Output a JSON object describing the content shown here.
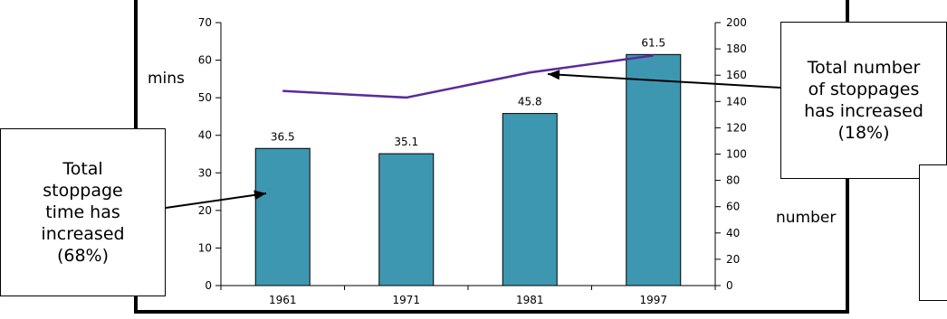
{
  "chart_data": {
    "type": "bar+line",
    "categories": [
      "1961",
      "1971",
      "1981",
      "1997"
    ],
    "series": [
      {
        "name": "",
        "kind": "bar",
        "axis": "left",
        "values": [
          36.5,
          35.1,
          45.8,
          61.5
        ],
        "color": "#3E97B0"
      },
      {
        "name": "",
        "kind": "line",
        "axis": "right",
        "values": [
          148,
          143,
          162,
          175
        ],
        "color": "#5B2A9A"
      }
    ],
    "data_labels": [
      "36.5",
      "35.1",
      "45.8",
      "61.5"
    ],
    "ylabel_left": "mins",
    "ylabel_right": "number",
    "ylim_left": [
      0,
      70
    ],
    "ylim_right": [
      0,
      200
    ],
    "left_ticks": [
      "0",
      "10",
      "20",
      "30",
      "40",
      "50",
      "60",
      "70"
    ],
    "right_ticks": [
      "0",
      "20",
      "40",
      "60",
      "80",
      "100",
      "120",
      "140",
      "160",
      "180",
      "200"
    ],
    "grid": false
  },
  "callouts": {
    "stoppage_time": [
      "Total",
      "stoppage",
      "time has",
      "increased",
      "(68%)"
    ],
    "stoppages_count": [
      "Total number",
      "of stoppages",
      "has increased",
      "(18%)"
    ]
  }
}
